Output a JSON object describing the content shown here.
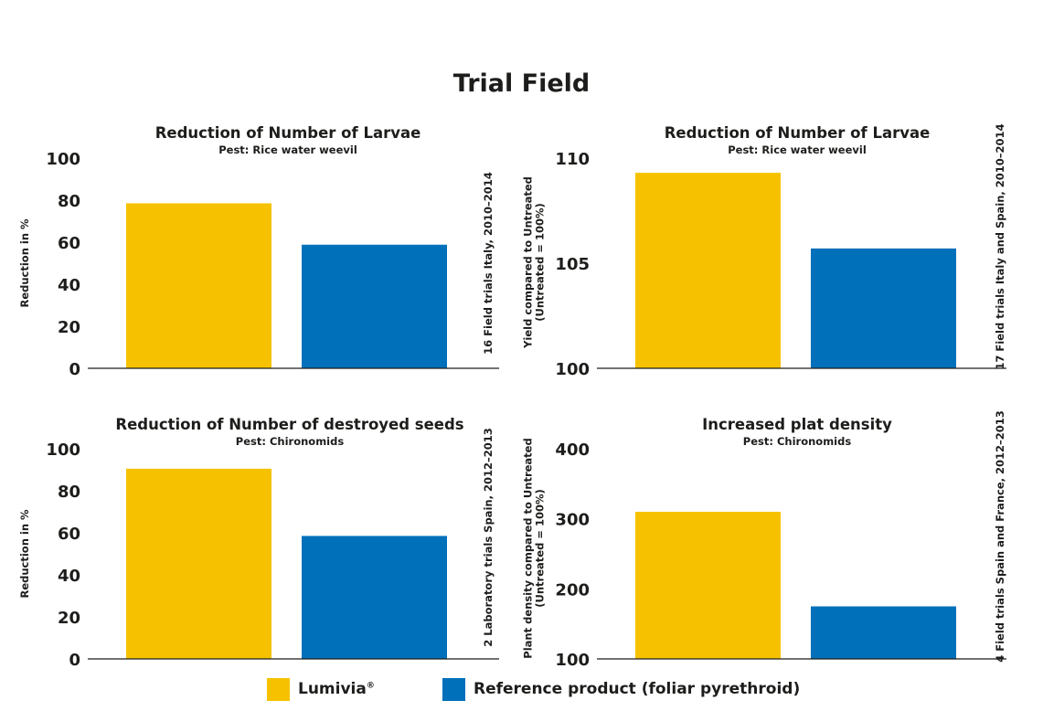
{
  "main_title": "Trial Field",
  "colors": {
    "lumivia": "#f6c200",
    "reference": "#0070ba",
    "axis": "#1d1d1b"
  },
  "legend": [
    {
      "label": "Lumivia",
      "mark": "®",
      "color": "#f6c200"
    },
    {
      "label": "Reference product (foliar pyrethroid)",
      "color": "#0070ba"
    }
  ],
  "chart_data": [
    {
      "type": "bar",
      "title": "Reduction of Number of Larvae",
      "subtitle": "Pest: Rice water weevil",
      "ylabel": [
        "Reduction in %"
      ],
      "side_note": "16 Field trials Italy, 2010–2014",
      "ylim": [
        0,
        100
      ],
      "yticks": [
        0,
        20,
        40,
        60,
        80,
        100
      ],
      "series": [
        {
          "name": "Lumivia",
          "value": 78.5
        },
        {
          "name": "Reference product (foliar pyrethroid)",
          "value": 58.8
        }
      ]
    },
    {
      "type": "bar",
      "title": "Reduction of Number of Larvae",
      "subtitle": "Pest: Rice water weevil",
      "ylabel": [
        "Yield compared to Untreated",
        "(Untreated = 100%)"
      ],
      "side_note": "17 Field trials Italy and Spain, 2010–2014",
      "ylim": [
        100,
        110
      ],
      "yticks": [
        100,
        105,
        110
      ],
      "series": [
        {
          "name": "Lumivia",
          "value": 109.3
        },
        {
          "name": "Reference product (foliar pyrethroid)",
          "value": 105.7
        }
      ]
    },
    {
      "type": "bar",
      "title": "Reduction of Number of destroyed  seeds",
      "subtitle": "Pest: Chironomids",
      "ylabel": [
        "Reduction in %"
      ],
      "side_note": "2 Laboratory trials Spain, 2012–2013",
      "ylim": [
        0,
        100
      ],
      "yticks": [
        0,
        20,
        40,
        60,
        80,
        100
      ],
      "series": [
        {
          "name": "Lumivia",
          "value": 90.5
        },
        {
          "name": "Reference product (foliar pyrethroid)",
          "value": 58.5
        }
      ]
    },
    {
      "type": "bar",
      "title": "Increased plat density",
      "subtitle": "Pest: Chironomids",
      "ylabel": [
        "Plant density compared to Untreated",
        "(Untreated = 100%)"
      ],
      "side_note": "4 Field trials Spain and France, 2012–2013",
      "ylim": [
        100,
        400
      ],
      "yticks": [
        100,
        200,
        300,
        400
      ],
      "series": [
        {
          "name": "Lumivia",
          "value": 310
        },
        {
          "name": "Reference product (foliar pyrethroid)",
          "value": 175
        }
      ]
    }
  ]
}
